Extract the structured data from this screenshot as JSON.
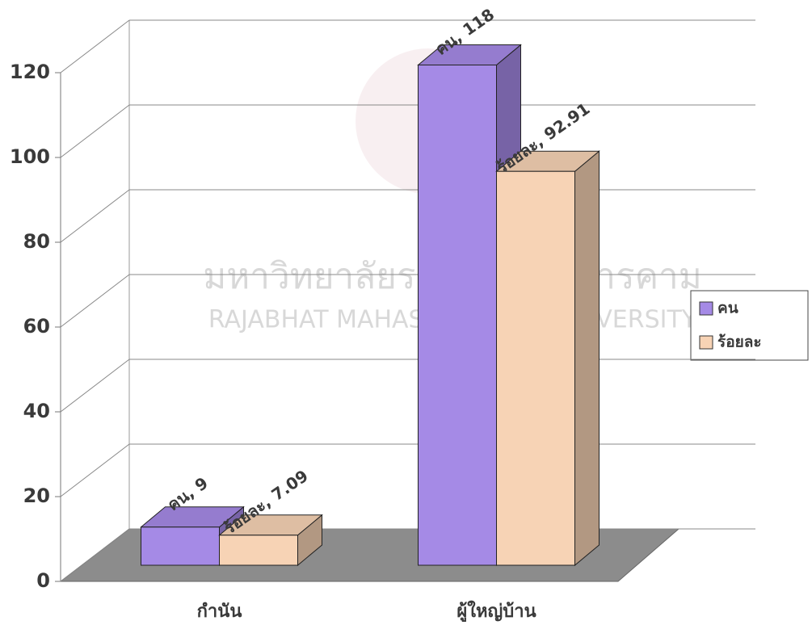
{
  "chart_data": {
    "type": "bar3d",
    "categories": [
      "กำนัน",
      "ผู้ใหญ่บ้าน"
    ],
    "series": [
      {
        "name": "คน",
        "color": "#a58ae6",
        "values": [
          9,
          118
        ],
        "value_labels": [
          "คน, 9",
          "คน, 118"
        ]
      },
      {
        "name": "ร้อยละ",
        "color": "#f7d3b5",
        "values": [
          7.09,
          92.91
        ],
        "value_labels": [
          "ร้อยละ, 7.09",
          "ร้อยละ, 92.91"
        ]
      }
    ],
    "ylim": [
      0,
      120
    ],
    "yticks": [
      0,
      20,
      40,
      60,
      80,
      100,
      120
    ],
    "grid": true,
    "legend": "right",
    "watermark": [
      "มหาวิทยาลัยราชภัฏมหาสารคาม",
      "RAJABHAT MAHASARAKHAM UNIVERSITY"
    ]
  }
}
